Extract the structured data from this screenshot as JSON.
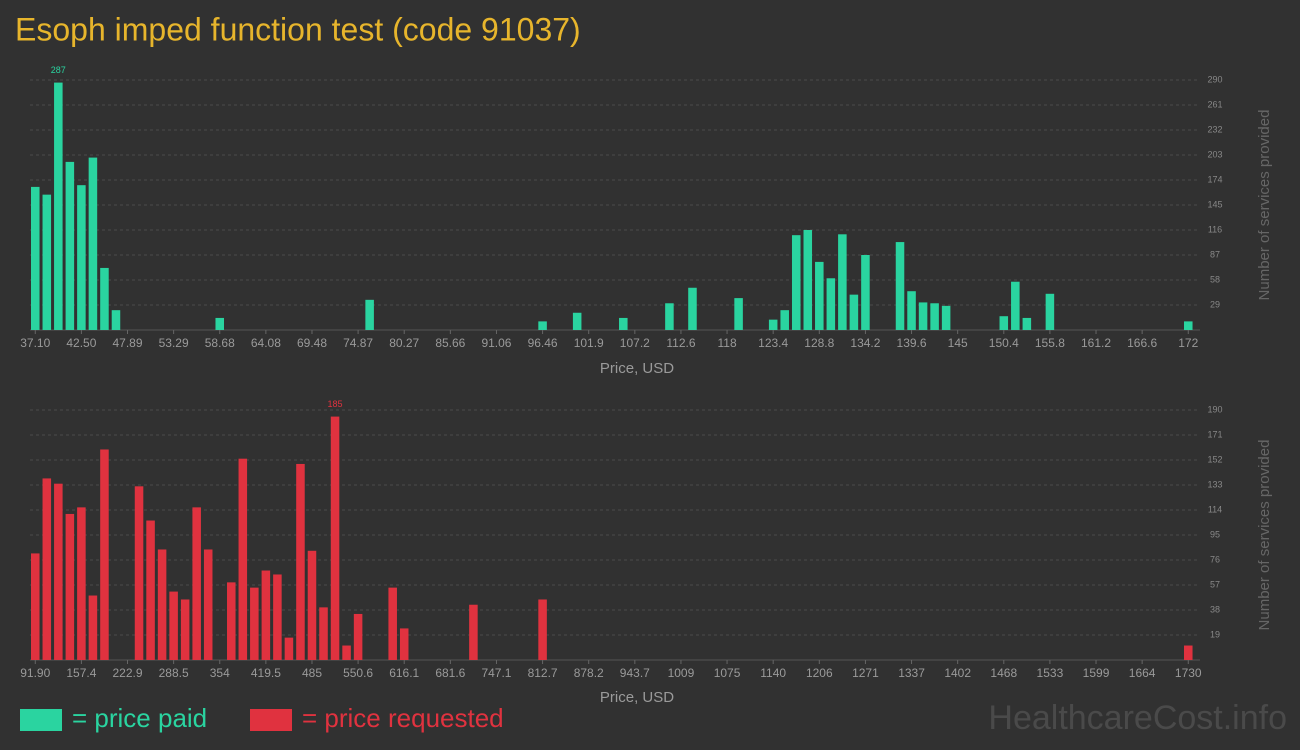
{
  "title": "Esoph imped function test (code 91037)",
  "watermark": "HealthcareCost.info",
  "chart_data": [
    {
      "type": "bar",
      "x_label": "Price, USD",
      "y_label": "Number of services provided",
      "categories": [
        "37.10",
        null,
        null,
        null,
        "42.50",
        null,
        null,
        null,
        "47.89",
        null,
        null,
        null,
        "53.29",
        null,
        null,
        null,
        "58.68",
        null,
        null,
        null,
        "64.08",
        null,
        null,
        null,
        "69.48",
        null,
        null,
        null,
        "74.87",
        null,
        null,
        null,
        "80.27",
        null,
        null,
        null,
        "85.66",
        null,
        null,
        null,
        "91.06",
        null,
        null,
        null,
        "96.46",
        null,
        null,
        null,
        "101.9",
        null,
        null,
        null,
        "107.2",
        null,
        null,
        null,
        "112.6",
        null,
        null,
        null,
        "118",
        null,
        null,
        null,
        "123.4",
        null,
        null,
        null,
        "128.8",
        null,
        null,
        null,
        "134.2",
        null,
        null,
        null,
        "139.6",
        null,
        null,
        null,
        "145",
        null,
        null,
        null,
        "150.4",
        null,
        null,
        null,
        "155.8",
        null,
        null,
        null,
        "161.2",
        null,
        null,
        null,
        "166.6",
        null,
        null,
        null,
        "172"
      ],
      "series": [
        {
          "name": "= price paid",
          "color": "#2ad4a0",
          "values": [
            166,
            157,
            287,
            195,
            168,
            200,
            72,
            23,
            0,
            0,
            0,
            0,
            0,
            0,
            0,
            0,
            14,
            0,
            0,
            0,
            0,
            0,
            0,
            0,
            0,
            0,
            0,
            0,
            0,
            35,
            0,
            0,
            0,
            0,
            0,
            0,
            0,
            0,
            0,
            0,
            0,
            0,
            0,
            0,
            10,
            0,
            0,
            20,
            0,
            0,
            0,
            14,
            0,
            0,
            0,
            31,
            0,
            49,
            0,
            0,
            0,
            37,
            0,
            0,
            12,
            23,
            110,
            116,
            79,
            60,
            111,
            41,
            87,
            0,
            0,
            102,
            45,
            32,
            31,
            28,
            0,
            0,
            0,
            0,
            16,
            56,
            14,
            0,
            42,
            0,
            0,
            0,
            0,
            0,
            0,
            0,
            0,
            0,
            0,
            0,
            10
          ]
        }
      ],
      "ylim": [
        0,
        290
      ],
      "yticks": [
        29,
        58,
        87,
        116,
        145,
        174,
        203,
        232,
        261,
        290
      ],
      "grid": true
    },
    {
      "type": "bar",
      "x_label": "Price, USD",
      "y_label": "Number of services provided",
      "categories": [
        "91.90",
        null,
        null,
        null,
        "157.4",
        null,
        null,
        null,
        "222.9",
        null,
        null,
        null,
        "288.5",
        null,
        null,
        null,
        "354",
        null,
        null,
        null,
        "419.5",
        null,
        null,
        null,
        "485",
        null,
        null,
        null,
        "550.6",
        null,
        null,
        null,
        "616.1",
        null,
        null,
        null,
        "681.6",
        null,
        null,
        null,
        "747.1",
        null,
        null,
        null,
        "812.7",
        null,
        null,
        null,
        "878.2",
        null,
        null,
        null,
        "943.7",
        null,
        null,
        null,
        "1009",
        null,
        null,
        null,
        "1075",
        null,
        null,
        null,
        "1140",
        null,
        null,
        null,
        "1206",
        null,
        null,
        null,
        "1271",
        null,
        null,
        null,
        "1337",
        null,
        null,
        null,
        "1402",
        null,
        null,
        null,
        "1468",
        null,
        null,
        null,
        "1533",
        null,
        null,
        null,
        "1599",
        null,
        null,
        null,
        "1664",
        null,
        null,
        null,
        "1730"
      ],
      "series": [
        {
          "name": "= price requested",
          "color": "#e0323f",
          "values": [
            81,
            138,
            134,
            111,
            116,
            49,
            160,
            0,
            0,
            132,
            106,
            84,
            52,
            46,
            116,
            84,
            0,
            59,
            153,
            55,
            68,
            65,
            17,
            149,
            83,
            40,
            185,
            11,
            35,
            0,
            0,
            55,
            24,
            0,
            0,
            0,
            0,
            0,
            42,
            0,
            0,
            0,
            0,
            0,
            46,
            0,
            0,
            0,
            0,
            0,
            0,
            0,
            0,
            0,
            0,
            0,
            0,
            0,
            0,
            0,
            0,
            0,
            0,
            0,
            0,
            0,
            0,
            0,
            0,
            0,
            0,
            0,
            0,
            0,
            0,
            0,
            0,
            0,
            0,
            0,
            0,
            0,
            0,
            0,
            0,
            0,
            0,
            0,
            0,
            0,
            0,
            0,
            0,
            0,
            0,
            0,
            0,
            0,
            0,
            0,
            11
          ]
        }
      ],
      "ylim": [
        0,
        190
      ],
      "yticks": [
        19,
        38,
        57,
        76,
        95,
        114,
        133,
        152,
        171,
        190
      ],
      "grid": true
    }
  ]
}
